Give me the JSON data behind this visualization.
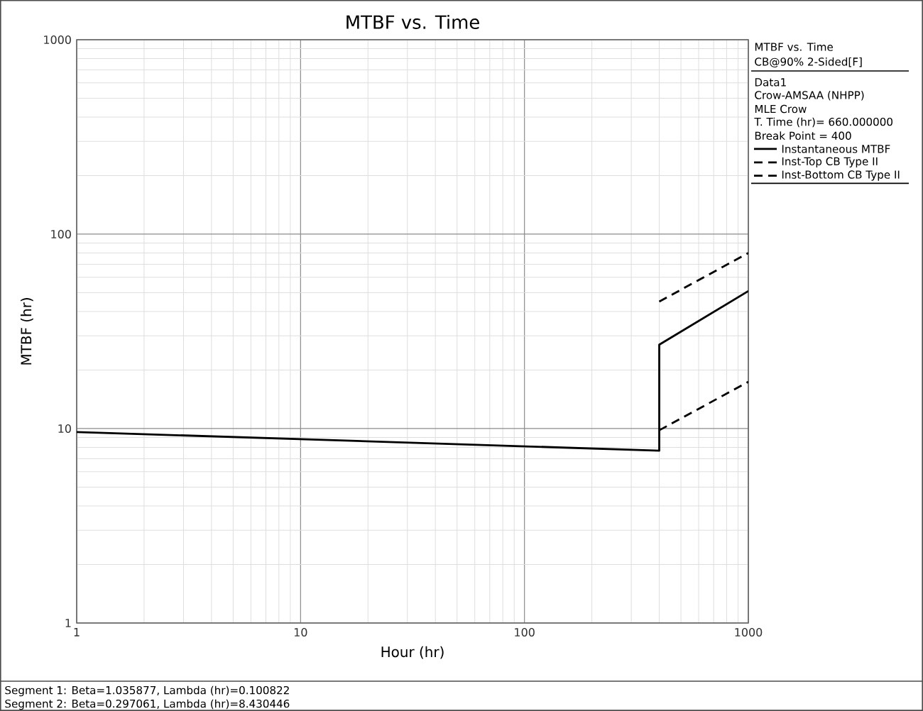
{
  "chart_data": {
    "type": "line",
    "title": "MTBF vs. Time",
    "xlabel": "Hour (hr)",
    "ylabel": "MTBF (hr)",
    "log": "xy",
    "grid": true,
    "legend": "right",
    "xlim": [
      1,
      1000
    ],
    "xticks": [
      1,
      10,
      100,
      1000
    ],
    "ylim": [
      1,
      1000
    ],
    "yticks": [
      1,
      10,
      100,
      1000
    ],
    "series": [
      {
        "name": "Instantaneous MTBF",
        "color": "#000000",
        "line_style": "solid",
        "x": [
          1,
          400,
          400,
          1000
        ],
        "values": [
          9.6,
          7.7,
          27,
          51
        ]
      },
      {
        "name": "Inst-Top CB Type II",
        "color": "#000000",
        "line_style": "dashed",
        "x": [
          400,
          1000
        ],
        "values": [
          45,
          80
        ]
      },
      {
        "name": "Inst-Bottom CB Type II",
        "color": "#000000",
        "line_style": "dashed",
        "x": [
          400,
          1000
        ],
        "values": [
          9.8,
          17.4
        ]
      }
    ],
    "annotations": [
      "CB@90% 2-Sided[F]",
      "Data1",
      "Crow-AMSAA (NHPP)",
      "MLE Crow",
      "T. Time (hr)= 660.000000",
      "Break Point = 400",
      "Segment 1: Beta=1.035877, Lambda (hr)=0.100822",
      "Segment 2: Beta=0.297061, Lambda (hr)=8.430446"
    ]
  }
}
